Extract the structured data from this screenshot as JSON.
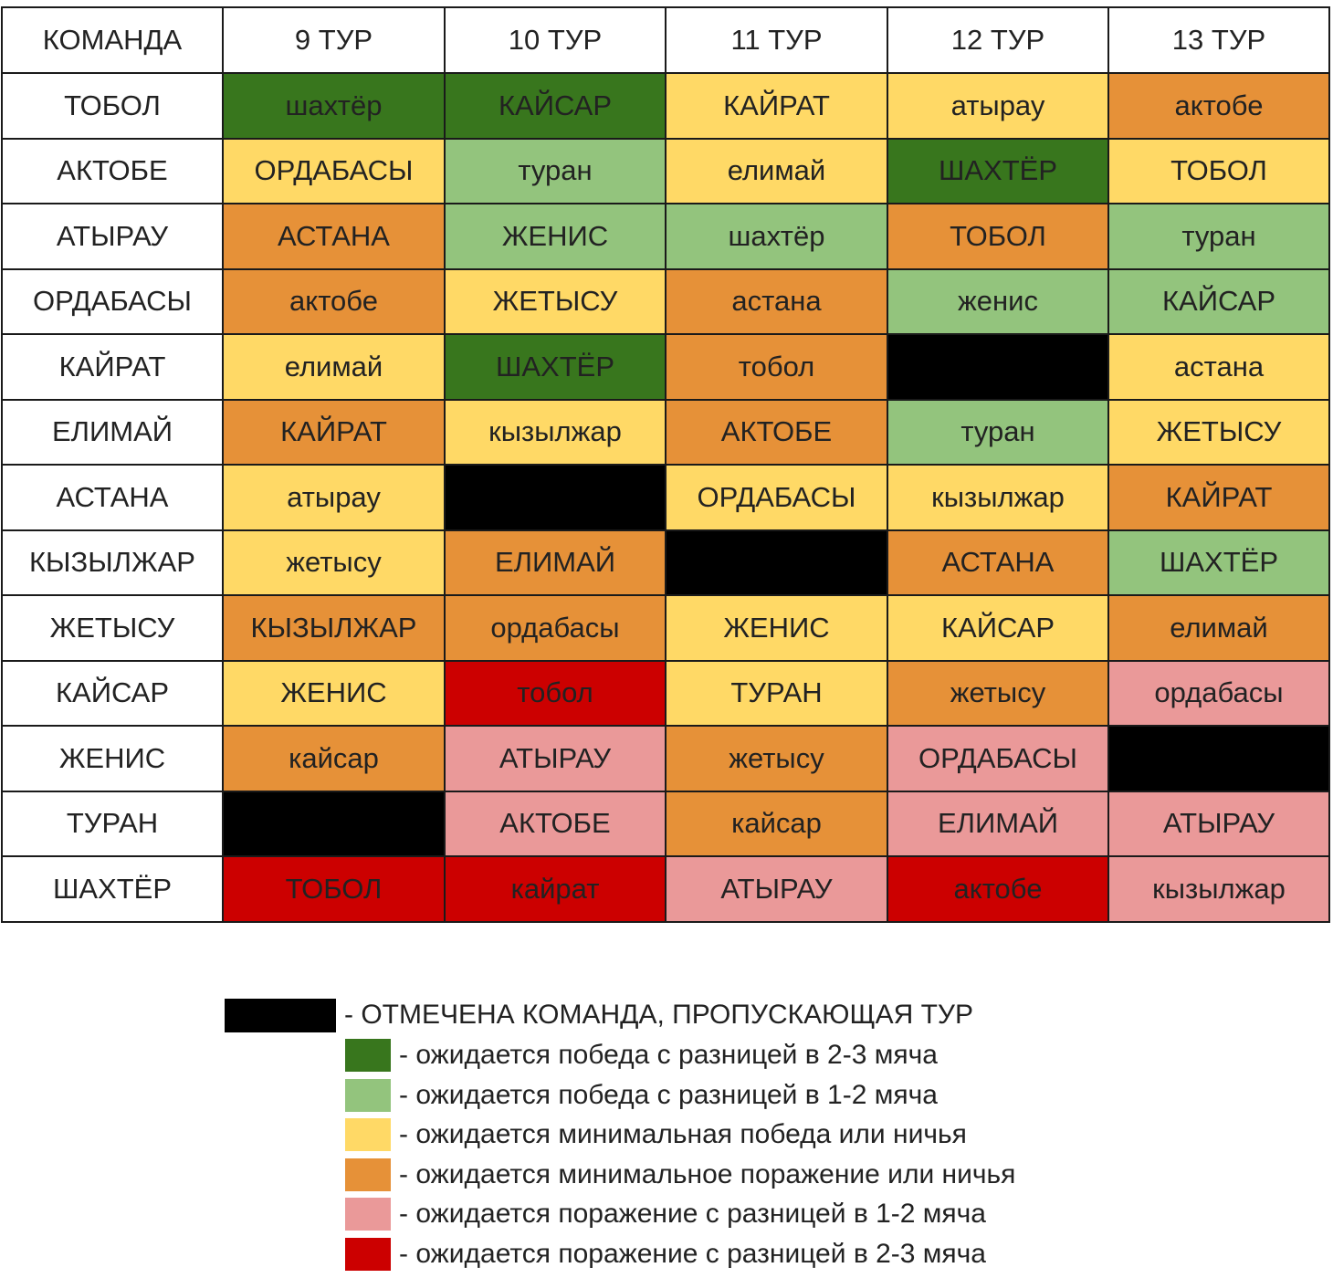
{
  "colors": {
    "bye": "#000000",
    "win_big": "#38761d",
    "win_small": "#93c47d",
    "win_min_draw": "#ffd966",
    "loss_min_draw": "#e69138",
    "loss_small": "#ea9999",
    "loss_big": "#cc0000",
    "header_bg": "#ffffff"
  },
  "chart_data": {
    "type": "table",
    "columns": [
      "КОМАНДА",
      "9 ТУР",
      "10 ТУР",
      "11 ТУР",
      "12 ТУР",
      "13 ТУР"
    ],
    "rows": [
      {
        "team": "ТОБОЛ",
        "cells": [
          {
            "text": "шахтёр",
            "cat": "win_big"
          },
          {
            "text": "КАЙСАР",
            "cat": "win_big"
          },
          {
            "text": "КАЙРАТ",
            "cat": "win_min_draw"
          },
          {
            "text": "атырау",
            "cat": "win_min_draw"
          },
          {
            "text": "актобе",
            "cat": "loss_min_draw"
          }
        ]
      },
      {
        "team": "АКТОБЕ",
        "cells": [
          {
            "text": "ОРДАБАСЫ",
            "cat": "win_min_draw"
          },
          {
            "text": "туран",
            "cat": "win_small"
          },
          {
            "text": "елимай",
            "cat": "win_min_draw"
          },
          {
            "text": "ШАХТЁР",
            "cat": "win_big"
          },
          {
            "text": "ТОБОЛ",
            "cat": "win_min_draw"
          }
        ]
      },
      {
        "team": "АТЫРАУ",
        "cells": [
          {
            "text": "АСТАНА",
            "cat": "loss_min_draw"
          },
          {
            "text": "ЖЕНИС",
            "cat": "win_small"
          },
          {
            "text": "шахтёр",
            "cat": "win_small"
          },
          {
            "text": "ТОБОЛ",
            "cat": "loss_min_draw"
          },
          {
            "text": "туран",
            "cat": "win_small"
          }
        ]
      },
      {
        "team": "ОРДАБАСЫ",
        "cells": [
          {
            "text": "актобе",
            "cat": "loss_min_draw"
          },
          {
            "text": "ЖЕТЫСУ",
            "cat": "win_min_draw"
          },
          {
            "text": "астана",
            "cat": "loss_min_draw"
          },
          {
            "text": "женис",
            "cat": "win_small"
          },
          {
            "text": "КАЙСАР",
            "cat": "win_small"
          }
        ]
      },
      {
        "team": "КАЙРАТ",
        "cells": [
          {
            "text": "елимай",
            "cat": "win_min_draw"
          },
          {
            "text": "ШАХТЁР",
            "cat": "win_big"
          },
          {
            "text": "тобол",
            "cat": "loss_min_draw"
          },
          {
            "text": "",
            "cat": "bye"
          },
          {
            "text": "астана",
            "cat": "win_min_draw"
          }
        ]
      },
      {
        "team": "ЕЛИМАЙ",
        "cells": [
          {
            "text": "КАЙРАТ",
            "cat": "loss_min_draw"
          },
          {
            "text": "кызылжар",
            "cat": "win_min_draw"
          },
          {
            "text": "АКТОБЕ",
            "cat": "loss_min_draw"
          },
          {
            "text": "туран",
            "cat": "win_small"
          },
          {
            "text": "ЖЕТЫСУ",
            "cat": "win_min_draw"
          }
        ]
      },
      {
        "team": "АСТАНА",
        "cells": [
          {
            "text": "атырау",
            "cat": "win_min_draw"
          },
          {
            "text": "",
            "cat": "bye"
          },
          {
            "text": "ОРДАБАСЫ",
            "cat": "win_min_draw"
          },
          {
            "text": "кызылжар",
            "cat": "win_min_draw"
          },
          {
            "text": "КАЙРАТ",
            "cat": "loss_min_draw"
          }
        ]
      },
      {
        "team": "КЫЗЫЛЖАР",
        "cells": [
          {
            "text": "жетысу",
            "cat": "win_min_draw"
          },
          {
            "text": "ЕЛИМАЙ",
            "cat": "loss_min_draw"
          },
          {
            "text": "",
            "cat": "bye"
          },
          {
            "text": "АСТАНА",
            "cat": "loss_min_draw"
          },
          {
            "text": "ШАХТЁР",
            "cat": "win_small"
          }
        ]
      },
      {
        "team": "ЖЕТЫСУ",
        "cells": [
          {
            "text": "КЫЗЫЛЖАР",
            "cat": "loss_min_draw"
          },
          {
            "text": "ордабасы",
            "cat": "loss_min_draw"
          },
          {
            "text": "ЖЕНИС",
            "cat": "win_min_draw"
          },
          {
            "text": "КАЙСАР",
            "cat": "win_min_draw"
          },
          {
            "text": "елимай",
            "cat": "loss_min_draw"
          }
        ]
      },
      {
        "team": "КАЙСАР",
        "cells": [
          {
            "text": "ЖЕНИС",
            "cat": "win_min_draw"
          },
          {
            "text": "тобол",
            "cat": "loss_big"
          },
          {
            "text": "ТУРАН",
            "cat": "win_min_draw"
          },
          {
            "text": "жетысу",
            "cat": "loss_min_draw"
          },
          {
            "text": "ордабасы",
            "cat": "loss_small"
          }
        ]
      },
      {
        "team": "ЖЕНИС",
        "cells": [
          {
            "text": "кайсар",
            "cat": "loss_min_draw"
          },
          {
            "text": "АТЫРАУ",
            "cat": "loss_small"
          },
          {
            "text": "жетысу",
            "cat": "loss_min_draw"
          },
          {
            "text": "ОРДАБАСЫ",
            "cat": "loss_small"
          },
          {
            "text": "",
            "cat": "bye"
          }
        ]
      },
      {
        "team": "ТУРАН",
        "cells": [
          {
            "text": "",
            "cat": "bye"
          },
          {
            "text": "АКТОБЕ",
            "cat": "loss_small"
          },
          {
            "text": "кайсар",
            "cat": "loss_min_draw"
          },
          {
            "text": "ЕЛИМАЙ",
            "cat": "loss_small"
          },
          {
            "text": "АТЫРАУ",
            "cat": "loss_small"
          }
        ]
      },
      {
        "team": "ШАХТЁР",
        "cells": [
          {
            "text": "ТОБОЛ",
            "cat": "loss_big"
          },
          {
            "text": "кайрат",
            "cat": "loss_big"
          },
          {
            "text": "АТЫРАУ",
            "cat": "loss_small"
          },
          {
            "text": "актобе",
            "cat": "loss_big"
          },
          {
            "text": "кызылжар",
            "cat": "loss_small"
          }
        ]
      }
    ]
  },
  "legend": {
    "items": [
      {
        "cat": "bye",
        "text": "- ОТМЕЧЕНА КОМАНДА, ПРОПУСКАЮЩАЯ ТУР"
      },
      {
        "cat": "win_big",
        "text": "- ожидается победа с разницей в 2-3 мяча"
      },
      {
        "cat": "win_small",
        "text": "- ожидается победа с разницей в 1-2 мяча"
      },
      {
        "cat": "win_min_draw",
        "text": "- ожидается минимальная победа или ничья"
      },
      {
        "cat": "loss_min_draw",
        "text": "- ожидается минимальное поражение или ничья"
      },
      {
        "cat": "loss_small",
        "text": "- ожидается поражение с разницей в 1-2 мяча"
      },
      {
        "cat": "loss_big",
        "text": "- ожидается поражение с разницей в 2-3 мяча"
      }
    ]
  }
}
